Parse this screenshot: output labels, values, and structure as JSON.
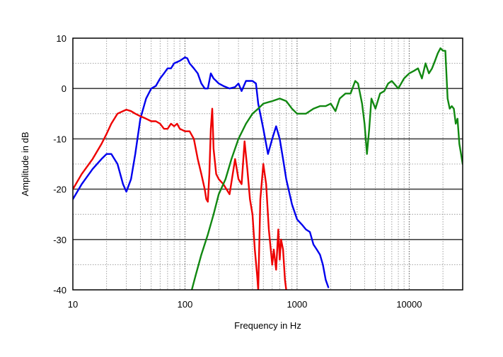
{
  "chart_data": {
    "type": "line",
    "title": "",
    "xlabel": "Frequency in Hz",
    "ylabel": "Amplitude in dB",
    "xscale": "log",
    "xlim": [
      10,
      30000
    ],
    "ylim": [
      -40,
      10
    ],
    "xticks": [
      10,
      100,
      1000,
      10000
    ],
    "xtick_labels": [
      "10",
      "100",
      "1000",
      "10000"
    ],
    "yticks": [
      10,
      0,
      -10,
      -20,
      -30,
      -40
    ],
    "ytick_labels": [
      "10",
      "0",
      "-10",
      "-20",
      "-30",
      "-40"
    ],
    "grid": true,
    "grid_style": "dotted, major and minor",
    "legend": "none",
    "series": [
      {
        "color": "#0000ee",
        "x": [
          10,
          12,
          15,
          18,
          20,
          22,
          25,
          28,
          30,
          33,
          36,
          40,
          45,
          50,
          55,
          60,
          65,
          70,
          75,
          80,
          90,
          100,
          105,
          110,
          120,
          130,
          140,
          150,
          160,
          170,
          180,
          190,
          200,
          220,
          250,
          280,
          300,
          320,
          350,
          380,
          400,
          430,
          450,
          500,
          550,
          600,
          650,
          700,
          750,
          800,
          900,
          1000,
          1100,
          1200,
          1300,
          1400,
          1500,
          1600,
          1700,
          1800,
          1900
        ],
        "y": [
          -22,
          -19,
          -16,
          -14,
          -13,
          -13,
          -15,
          -19,
          -20.5,
          -18,
          -13,
          -6,
          -2,
          0,
          0.5,
          2,
          3,
          4,
          4,
          5,
          5.5,
          6.2,
          6,
          5,
          4,
          3,
          1,
          0,
          0,
          3,
          2,
          1.5,
          1,
          0.5,
          0,
          0.3,
          1,
          -0.5,
          1.5,
          1.5,
          1.5,
          1,
          -3,
          -8,
          -13,
          -10,
          -7.5,
          -10,
          -14,
          -18,
          -23,
          -26,
          -27,
          -28,
          -28.5,
          -31,
          -32,
          -33,
          -35,
          -38,
          -39.5
        ]
      },
      {
        "color": "#ee0000",
        "x": [
          10,
          12,
          15,
          18,
          20,
          22,
          25,
          28,
          30,
          33,
          36,
          40,
          45,
          50,
          55,
          60,
          65,
          70,
          75,
          80,
          85,
          90,
          100,
          110,
          120,
          130,
          140,
          150,
          155,
          160,
          165,
          170,
          175,
          180,
          190,
          200,
          220,
          250,
          280,
          300,
          320,
          340,
          360,
          380,
          400,
          420,
          440,
          450,
          470,
          500,
          530,
          560,
          600,
          620,
          650,
          680,
          700,
          720,
          750,
          780,
          800
        ],
        "y": [
          -20,
          -17,
          -14,
          -11,
          -9,
          -7,
          -5,
          -4.5,
          -4.2,
          -4.5,
          -5,
          -5.5,
          -6,
          -6.5,
          -6.5,
          -7,
          -8,
          -8,
          -7,
          -7.5,
          -7,
          -8,
          -8.5,
          -8.5,
          -10,
          -14,
          -17,
          -20,
          -22,
          -22.5,
          -17,
          -8,
          -4,
          -12,
          -17,
          -18,
          -19,
          -21,
          -14,
          -18,
          -19,
          -10.5,
          -16,
          -22,
          -25,
          -32,
          -37,
          -40,
          -22,
          -15,
          -19,
          -28,
          -35,
          -32,
          -36,
          -28,
          -34,
          -30,
          -32,
          -38,
          -40
        ]
      },
      {
        "color": "#118811",
        "x": [
          115,
          125,
          140,
          160,
          180,
          200,
          230,
          260,
          300,
          350,
          400,
          450,
          500,
          600,
          700,
          800,
          900,
          1000,
          1100,
          1200,
          1400,
          1600,
          1800,
          2000,
          2200,
          2400,
          2700,
          3000,
          3300,
          3500,
          3800,
          4000,
          4200,
          4400,
          4600,
          5000,
          5500,
          6000,
          6500,
          7000,
          8000,
          9000,
          10000,
          11000,
          12000,
          13000,
          14000,
          15000,
          16000,
          17000,
          18000,
          19000,
          20000,
          21000,
          22000,
          23000,
          24000,
          25000,
          26000,
          27000,
          28000,
          29000,
          30000
        ],
        "y": [
          -40,
          -37,
          -33,
          -29,
          -25,
          -21,
          -18,
          -14,
          -10,
          -7,
          -5,
          -4,
          -3,
          -2.5,
          -2,
          -2.5,
          -4,
          -5,
          -5,
          -5,
          -4,
          -3.5,
          -3.5,
          -3,
          -4.5,
          -2,
          -1,
          -1,
          1.5,
          1,
          -3,
          -7,
          -13,
          -8,
          -2,
          -4,
          -1,
          -0.5,
          1,
          1.5,
          0,
          2,
          3,
          3.5,
          4,
          2,
          5,
          3,
          4,
          5.5,
          7,
          8,
          7.5,
          7.5,
          -2,
          -4,
          -3.5,
          -4,
          -7,
          -6,
          -11,
          -13,
          -15
        ]
      }
    ]
  }
}
